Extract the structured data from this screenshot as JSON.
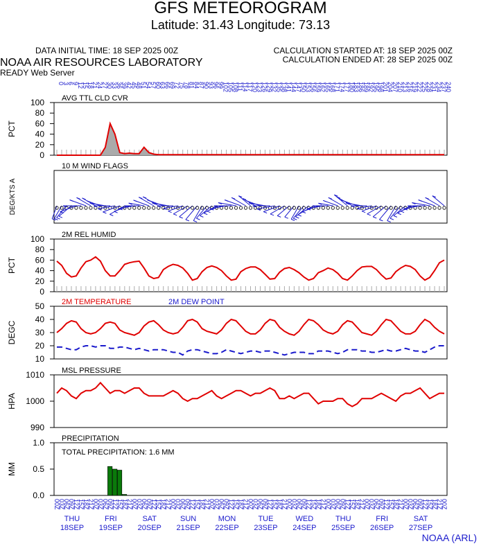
{
  "header": {
    "title": "GFS METEOROGRAM",
    "subtitle": "Latitude: 31.43 Longitude:  73.13",
    "data_initial_time": "DATA INITIAL TIME: 18 SEP 2025 00Z",
    "calc_started": "CALCULATION STARTED AT: 18 SEP 2025 00Z",
    "calc_ended": "CALCULATION ENDED AT: 28 SEP 2025 00Z",
    "lab": "NOAA AIR RESOURCES LABORATORY",
    "server": "READY Web Server"
  },
  "footer": {
    "credit": "NOAA (ARL)"
  },
  "colors": {
    "red": "#e00000",
    "blue": "#1a1acc",
    "green": "#0a7a0a",
    "gray": "#aaaaaa"
  },
  "chart_data": {
    "type": "line",
    "time_step_hours": 3,
    "top_hour_labels": [
      "0",
      "3",
      "6",
      "9",
      "12",
      "15",
      "18",
      "21",
      "24",
      "27",
      "30",
      "33",
      "36",
      "39",
      "42",
      "45",
      "48",
      "51",
      "54",
      "57",
      "60",
      "63",
      "66",
      "69",
      "72",
      "75",
      "78",
      "81",
      "84",
      "87",
      "90",
      "93",
      "96",
      "99",
      "102",
      "105",
      "108",
      "111",
      "114",
      "117",
      "120",
      "123",
      "126",
      "129",
      "132",
      "135",
      "138",
      "141",
      "144",
      "147",
      "150",
      "153",
      "156",
      "159",
      "162",
      "165",
      "168",
      "171",
      "174",
      "177",
      "180",
      "183",
      "186",
      "189",
      "192",
      "195",
      "198",
      "201",
      "204",
      "207",
      "210",
      "213",
      "216",
      "219",
      "222",
      "225",
      "228",
      "231",
      "234",
      "237",
      "240"
    ],
    "bottom_utc_labels": [
      "00",
      "03",
      "06",
      "09",
      "12",
      "15",
      "18",
      "21"
    ],
    "days": [
      {
        "dow": "THU",
        "date": "18SEP"
      },
      {
        "dow": "FRI",
        "date": "19SEP"
      },
      {
        "dow": "SAT",
        "date": "20SEP"
      },
      {
        "dow": "SUN",
        "date": "21SEP"
      },
      {
        "dow": "MON",
        "date": "22SEP"
      },
      {
        "dow": "TUE",
        "date": "23SEP"
      },
      {
        "dow": "WED",
        "date": "24SEP"
      },
      {
        "dow": "THU",
        "date": "25SEP"
      },
      {
        "dow": "FRI",
        "date": "26SEP"
      },
      {
        "dow": "SAT",
        "date": "27SEP"
      }
    ],
    "panels": {
      "cloud": {
        "label": "AVG TTL CLD CVR",
        "ylabel": "PCT",
        "ylim": [
          0,
          100
        ],
        "yticks": [
          "0",
          "20",
          "40",
          "60",
          "80",
          "100"
        ],
        "values": [
          0,
          0,
          0,
          0,
          0,
          0,
          0,
          0,
          0,
          0,
          15,
          60,
          40,
          5,
          3,
          4,
          3,
          3,
          15,
          5,
          2,
          1,
          1,
          1,
          1,
          1,
          1,
          1,
          1,
          1,
          1,
          1,
          1,
          1,
          1,
          1,
          1,
          1,
          1,
          1,
          1,
          1,
          1,
          1,
          1,
          1,
          1,
          1,
          1,
          1,
          1,
          1,
          1,
          1,
          1,
          1,
          1,
          1,
          1,
          1,
          1,
          1,
          1,
          1,
          1,
          1,
          1,
          1,
          1,
          1,
          1,
          1,
          1,
          1,
          1,
          1,
          1,
          1,
          1,
          1,
          1
        ]
      },
      "wind": {
        "label": "10 M  WIND FLAGS",
        "ylabel": "DEG/KTS  A",
        "dir_deg": [
          200,
          210,
          220,
          230,
          250,
          270,
          290,
          300,
          300,
          290,
          280,
          270,
          260,
          250,
          240,
          250,
          260,
          270,
          280,
          290,
          300,
          300,
          290,
          280,
          270,
          260,
          250,
          240,
          230,
          220,
          210,
          220,
          230,
          240,
          250,
          260,
          270,
          280,
          290,
          300,
          310,
          300,
          290,
          280,
          270,
          260,
          250,
          240,
          230,
          220,
          210,
          220,
          230,
          240,
          250,
          260,
          270,
          280,
          290,
          300,
          310,
          300,
          290,
          280,
          270,
          260,
          250,
          240,
          230,
          220,
          210,
          220,
          230,
          240,
          250,
          260,
          270,
          280,
          290,
          300,
          310
        ],
        "speed_kt": [
          5,
          6,
          7,
          8,
          9,
          10,
          9,
          8,
          7,
          6,
          7,
          8,
          9,
          10,
          9,
          8,
          7,
          6,
          7,
          8,
          9,
          10,
          9,
          8,
          7,
          6,
          7,
          8,
          9,
          10,
          9,
          8,
          7,
          6,
          7,
          8,
          9,
          10,
          9,
          8,
          7,
          6,
          7,
          8,
          9,
          10,
          9,
          8,
          7,
          6,
          7,
          8,
          9,
          10,
          9,
          8,
          7,
          6,
          7,
          8,
          9,
          10,
          9,
          8,
          7,
          6,
          7,
          8,
          9,
          10,
          9,
          8,
          7,
          6,
          7,
          8,
          9,
          10,
          9,
          8,
          7
        ]
      },
      "humidity": {
        "label": "2M REL HUMID",
        "ylabel": "PCT",
        "ylim": [
          0,
          100
        ],
        "yticks": [
          "0",
          "20",
          "40",
          "60",
          "80",
          "100"
        ],
        "values": [
          58,
          50,
          35,
          28,
          30,
          45,
          57,
          60,
          66,
          58,
          40,
          30,
          30,
          40,
          52,
          55,
          57,
          58,
          45,
          30,
          25,
          27,
          42,
          48,
          52,
          50,
          45,
          35,
          22,
          25,
          38,
          46,
          49,
          46,
          40,
          30,
          22,
          24,
          38,
          44,
          47,
          47,
          42,
          33,
          24,
          25,
          37,
          44,
          46,
          42,
          36,
          28,
          22,
          25,
          36,
          40,
          45,
          42,
          35,
          25,
          22,
          30,
          40,
          47,
          48,
          48,
          42,
          32,
          24,
          26,
          38,
          45,
          50,
          48,
          42,
          30,
          22,
          27,
          40,
          55,
          60
        ]
      },
      "temperature": {
        "label": "2M TEMPERATURE",
        "label2": "2M  DEW POINT",
        "ylabel": "DEGC",
        "ylim": [
          10,
          50
        ],
        "yticks": [
          "10",
          "20",
          "30",
          "40",
          "50"
        ],
        "temp": [
          30,
          33,
          37,
          39,
          38,
          33,
          30,
          29,
          30,
          33,
          37,
          38,
          37,
          32,
          30,
          29,
          28,
          30,
          35,
          38,
          39,
          36,
          32,
          30,
          29,
          30,
          34,
          39,
          40,
          38,
          33,
          31,
          30,
          29,
          32,
          37,
          40,
          39,
          35,
          31,
          29,
          29,
          32,
          37,
          40,
          39,
          34,
          31,
          29,
          28,
          31,
          36,
          40,
          39,
          36,
          32,
          30,
          29,
          31,
          36,
          39,
          38,
          34,
          30,
          29,
          28,
          31,
          36,
          40,
          39,
          35,
          31,
          29,
          29,
          31,
          36,
          40,
          38,
          34,
          31,
          29
        ],
        "dew": [
          19,
          19,
          18,
          17,
          17,
          19,
          20,
          20,
          19,
          20,
          20,
          18,
          18,
          19,
          19,
          18,
          17,
          18,
          17,
          16,
          17,
          17,
          17,
          16,
          15,
          15,
          13,
          16,
          17,
          17,
          16,
          15,
          14,
          14,
          15,
          17,
          16,
          15,
          14,
          15,
          16,
          16,
          15,
          16,
          16,
          15,
          14,
          13,
          14,
          15,
          15,
          15,
          14,
          14,
          16,
          16,
          16,
          15,
          14,
          15,
          17,
          17,
          17,
          16,
          16,
          15,
          15,
          16,
          17,
          16,
          16,
          17,
          18,
          17,
          16,
          16,
          15,
          17,
          19,
          20,
          20
        ]
      },
      "pressure": {
        "label": "MSL PRESSURE",
        "ylabel": "HPA",
        "ylim": [
          990,
          1010
        ],
        "yticks": [
          "990",
          "1000",
          "1010"
        ],
        "values": [
          1003,
          1005,
          1004,
          1002,
          1001,
          1003,
          1004,
          1004,
          1005,
          1007,
          1005,
          1003,
          1004,
          1004,
          1003,
          1004,
          1005,
          1005,
          1003,
          1002,
          1002,
          1002,
          1002,
          1003,
          1004,
          1003,
          1001,
          1000,
          1001,
          1001,
          1002,
          1003,
          1004,
          1002,
          1001,
          1002,
          1003,
          1004,
          1004,
          1003,
          1002,
          1003,
          1003,
          1004,
          1005,
          1004,
          1001,
          1001,
          1002,
          1001,
          1002,
          1003,
          1003,
          1001,
          999,
          1000,
          1000,
          1000,
          1001,
          1001,
          999,
          998,
          999,
          1001,
          1001,
          1001,
          1002,
          1003,
          1002,
          1001,
          1000,
          1002,
          1003,
          1003,
          1004,
          1005,
          1003,
          1001,
          1002,
          1003,
          1003
        ]
      },
      "precip": {
        "label": "PRECIPITATION",
        "total_label": "TOTAL PRECIPITATION:   1.6 MM",
        "ylabel": "MM",
        "ylim": [
          0,
          1.0
        ],
        "yticks": [
          "0.0",
          "0.5",
          "1.0"
        ],
        "bars": [
          {
            "step": 11,
            "value": 0.55
          },
          {
            "step": 12,
            "value": 0.5
          },
          {
            "step": 13,
            "value": 0.48
          },
          {
            "step": 14,
            "value": 0.02
          }
        ]
      }
    }
  }
}
